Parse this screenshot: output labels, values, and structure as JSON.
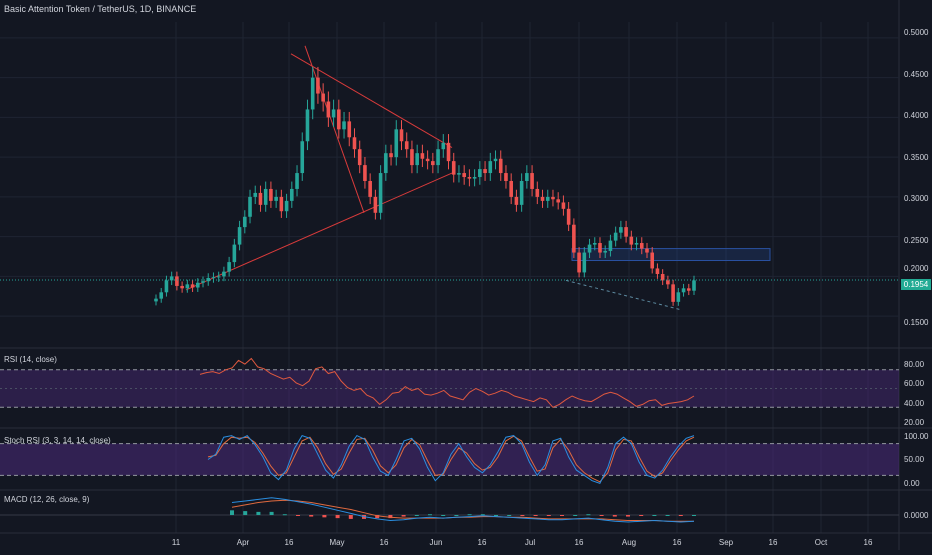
{
  "title": "Basic Attention Token / TetherUS, 1D, BINANCE",
  "last_price_label": "0.1954",
  "colors": {
    "up": "#26a69a",
    "down": "#ef5350",
    "background": "#131722",
    "grid": "#1f2433",
    "trendline": "#d93b3b",
    "rsi_line": "#e0593f",
    "stoch_k": "#2a8ee0",
    "stoch_d": "#e06a3f",
    "band_fill": "#4b2a7a",
    "zone_box": "#2950a0"
  },
  "x_ticks": [
    "11",
    "Apr",
    "16",
    "May",
    "16",
    "Jun",
    "16",
    "Jul",
    "16",
    "Aug",
    "16",
    "Sep",
    "16",
    "Oct",
    "16"
  ],
  "panels": {
    "rsi": {
      "label": "RSI (14, close)",
      "ticks": [
        "80.00",
        "60.00",
        "40.00",
        "20.00"
      ]
    },
    "stoch": {
      "label": "Stoch RSI (3, 3, 14, 14, close)",
      "ticks": [
        "100.00",
        "50.00",
        "0.00"
      ]
    },
    "macd": {
      "label": "MACD (12, 26, close, 9)",
      "ticks": [
        "0.0000"
      ]
    }
  },
  "chart_data": {
    "type": "candlestick",
    "y_ticks": [
      "0.5000",
      "0.4500",
      "0.4000",
      "0.3500",
      "0.3000",
      "0.2500",
      "0.2000",
      "0.1500"
    ],
    "ylim": [
      0.12,
      0.52
    ],
    "last_price": 0.1954,
    "closes": [
      0.172,
      0.18,
      0.195,
      0.2,
      0.188,
      0.185,
      0.19,
      0.186,
      0.192,
      0.194,
      0.198,
      0.199,
      0.2,
      0.206,
      0.218,
      0.24,
      0.262,
      0.275,
      0.3,
      0.305,
      0.29,
      0.31,
      0.295,
      0.3,
      0.282,
      0.295,
      0.31,
      0.33,
      0.37,
      0.41,
      0.45,
      0.43,
      0.42,
      0.4,
      0.41,
      0.385,
      0.395,
      0.375,
      0.36,
      0.34,
      0.32,
      0.3,
      0.28,
      0.33,
      0.355,
      0.35,
      0.385,
      0.37,
      0.36,
      0.34,
      0.355,
      0.348,
      0.345,
      0.34,
      0.36,
      0.368,
      0.345,
      0.328,
      0.33,
      0.325,
      0.323,
      0.325,
      0.335,
      0.33,
      0.345,
      0.348,
      0.33,
      0.32,
      0.3,
      0.29,
      0.32,
      0.33,
      0.31,
      0.3,
      0.295,
      0.3,
      0.297,
      0.293,
      0.285,
      0.265,
      0.23,
      0.205,
      0.23,
      0.24,
      0.242,
      0.23,
      0.232,
      0.245,
      0.255,
      0.262,
      0.25,
      0.24,
      0.242,
      0.235,
      0.23,
      0.21,
      0.203,
      0.195,
      0.19,
      0.168,
      0.18,
      0.185,
      0.182,
      0.195
    ],
    "rsi": [
      65,
      67,
      68,
      66,
      70,
      72,
      80,
      76,
      82,
      73,
      71,
      66,
      63,
      60,
      62,
      56,
      53,
      58,
      71,
      73,
      66,
      68,
      58,
      51,
      48,
      50,
      43,
      40,
      33,
      38,
      45,
      46,
      52,
      48,
      50,
      44,
      43,
      45,
      48,
      42,
      40,
      38,
      46,
      50,
      47,
      43,
      45,
      48,
      46,
      42,
      40,
      38,
      36,
      40,
      38,
      30,
      33,
      38,
      42,
      39,
      37,
      36,
      40,
      44,
      46,
      44,
      40,
      36,
      31,
      33,
      37,
      38,
      32,
      34,
      35,
      36,
      38,
      42
    ],
    "stoch_k": [
      50,
      60,
      92,
      95,
      88,
      95,
      78,
      55,
      25,
      12,
      30,
      70,
      95,
      90,
      60,
      30,
      15,
      40,
      75,
      95,
      88,
      55,
      28,
      20,
      50,
      85,
      90,
      70,
      35,
      10,
      25,
      60,
      80,
      55,
      35,
      25,
      40,
      65,
      92,
      95,
      80,
      45,
      20,
      40,
      85,
      90,
      55,
      30,
      20,
      10,
      5,
      35,
      80,
      92,
      80,
      45,
      20,
      15,
      30,
      55,
      75,
      90,
      95
    ],
    "stoch_d": [
      55,
      58,
      80,
      92,
      90,
      92,
      82,
      62,
      38,
      20,
      25,
      55,
      85,
      92,
      72,
      42,
      22,
      32,
      62,
      88,
      90,
      68,
      38,
      25,
      40,
      72,
      88,
      78,
      48,
      20,
      22,
      50,
      72,
      62,
      42,
      30,
      35,
      55,
      85,
      94,
      85,
      55,
      28,
      32,
      72,
      88,
      68,
      40,
      25,
      15,
      8,
      25,
      68,
      88,
      85,
      55,
      28,
      18,
      25,
      48,
      68,
      85,
      92
    ],
    "macd": [
      0.016,
      0.018,
      0.02,
      0.022,
      0.02,
      0.017,
      0.014,
      0.01,
      0.006,
      0.002,
      -0.002,
      -0.005,
      -0.007,
      -0.006,
      -0.004,
      -0.003,
      -0.004,
      -0.003,
      -0.002,
      -0.001,
      -0.002,
      -0.003,
      -0.004,
      -0.005,
      -0.006,
      -0.006,
      -0.005,
      -0.004,
      -0.006,
      -0.008,
      -0.009,
      -0.008,
      -0.007,
      -0.008,
      -0.009,
      -0.008
    ],
    "macd_signal": [
      0.01,
      0.013,
      0.016,
      0.018,
      0.019,
      0.018,
      0.016,
      0.013,
      0.01,
      0.007,
      0.003,
      -0.001,
      -0.003,
      -0.004,
      -0.004,
      -0.004,
      -0.004,
      -0.003,
      -0.003,
      -0.002,
      -0.002,
      -0.003,
      -0.003,
      -0.004,
      -0.005,
      -0.005,
      -0.005,
      -0.005,
      -0.005,
      -0.006,
      -0.007,
      -0.007,
      -0.007,
      -0.008,
      -0.008,
      -0.008
    ]
  }
}
